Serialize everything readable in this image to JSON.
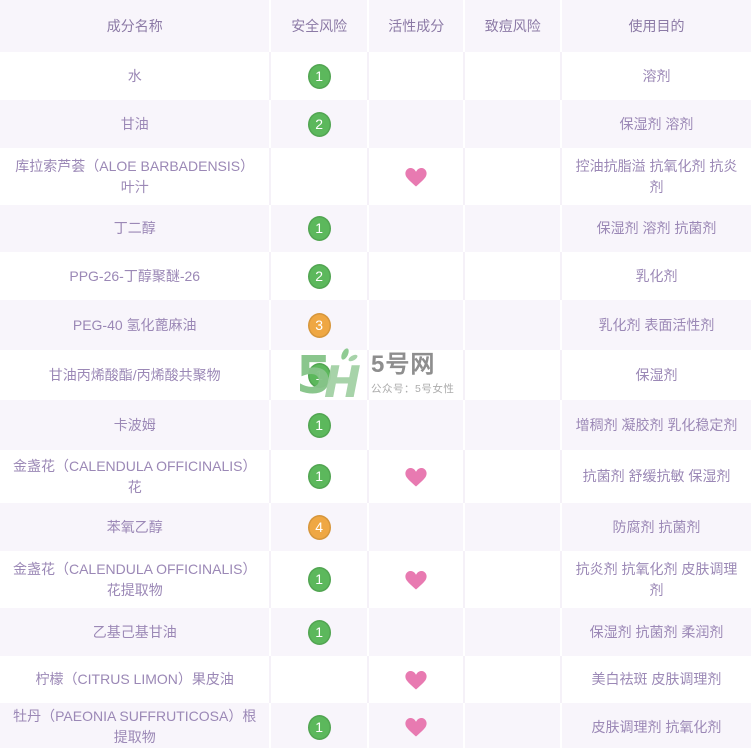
{
  "colors": {
    "risk_green": "#5cb85c",
    "risk_orange": "#efa743",
    "heart_pink": "#e87ab1",
    "row_lavender": "#f8f5fb",
    "text_purple": "#9b88b6",
    "header_purple": "#8c7aa6"
  },
  "watermark": {
    "logo": "5haowang-green-logo",
    "title": "5号网",
    "subtitle": "公众号：5号女性"
  },
  "table": {
    "headers": [
      "成分名称",
      "安全风险",
      "活性成分",
      "致痘风险",
      "使用目的"
    ],
    "rows": [
      {
        "name": "水",
        "risk": "1",
        "risk_level": "green",
        "active": false,
        "acne": "",
        "purpose": "溶剂"
      },
      {
        "name": "甘油",
        "risk": "2",
        "risk_level": "green",
        "active": false,
        "acne": "",
        "purpose": "保湿剂 溶剂"
      },
      {
        "name": "库拉索芦荟（ALOE BARBADENSIS）叶汁",
        "risk": "",
        "risk_level": "",
        "active": true,
        "acne": "",
        "purpose": "控油抗脂溢 抗氧化剂 抗炎剂"
      },
      {
        "name": "丁二醇",
        "risk": "1",
        "risk_level": "green",
        "active": false,
        "acne": "",
        "purpose": "保湿剂 溶剂 抗菌剂"
      },
      {
        "name": "PPG-26-丁醇聚醚-26",
        "risk": "2",
        "risk_level": "green",
        "active": false,
        "acne": "",
        "purpose": "乳化剂"
      },
      {
        "name": "PEG-40 氢化蓖麻油",
        "risk": "3",
        "risk_level": "orange",
        "active": false,
        "acne": "",
        "purpose": "乳化剂 表面活性剂"
      },
      {
        "name": "甘油丙烯酸酯/丙烯酸共聚物",
        "risk": "1",
        "risk_level": "green",
        "active": false,
        "acne": "",
        "purpose": "保湿剂"
      },
      {
        "name": "卡波姆",
        "risk": "1",
        "risk_level": "green",
        "active": false,
        "acne": "",
        "purpose": "增稠剂 凝胶剂 乳化稳定剂"
      },
      {
        "name": "金盏花（CALENDULA OFFICINALIS）花",
        "risk": "1",
        "risk_level": "green",
        "active": true,
        "acne": "",
        "purpose": "抗菌剂 舒缓抗敏 保湿剂"
      },
      {
        "name": "苯氧乙醇",
        "risk": "4",
        "risk_level": "orange",
        "active": false,
        "acne": "",
        "purpose": "防腐剂 抗菌剂"
      },
      {
        "name": "金盏花（CALENDULA OFFICINALIS）花提取物",
        "risk": "1",
        "risk_level": "green",
        "active": true,
        "acne": "",
        "purpose": "抗炎剂 抗氧化剂 皮肤调理剂"
      },
      {
        "name": "乙基己基甘油",
        "risk": "1",
        "risk_level": "green",
        "active": false,
        "acne": "",
        "purpose": "保湿剂 抗菌剂 柔润剂"
      },
      {
        "name": "柠檬（CITRUS LIMON）果皮油",
        "risk": "",
        "risk_level": "",
        "active": true,
        "acne": "",
        "purpose": "美白祛斑 皮肤调理剂"
      },
      {
        "name": "牡丹（PAEONIA SUFFRUTICOSA）根提取物",
        "risk": "1",
        "risk_level": "green",
        "active": true,
        "acne": "",
        "purpose": "皮肤调理剂 抗氧化剂"
      }
    ]
  }
}
